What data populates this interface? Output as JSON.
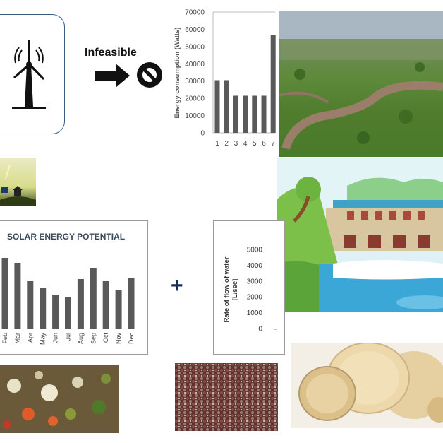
{
  "wind_panel": {
    "label": "Infeasible",
    "icons": [
      "wind-turbine-icon",
      "arrow-right-icon",
      "no-entry-icon"
    ]
  },
  "energy_chart": {
    "ylabel": "Energy consumption (Watts)",
    "yticks": [
      "0",
      "10000",
      "20000",
      "30000",
      "40000",
      "50000",
      "60000",
      "70000"
    ]
  },
  "solar_chart": {
    "title": "SOLAR ENERGY POTENTIAL"
  },
  "flow_chart": {
    "ylabel_line1": "Rate of flow of water",
    "ylabel_line2": "[L/sec]",
    "yticks": [
      "0",
      "1000",
      "2000",
      "3000",
      "4000",
      "5000"
    ]
  },
  "plus_symbol": "+",
  "chart_data": [
    {
      "type": "bar",
      "categories": [
        "1",
        "2",
        "3",
        "4",
        "5",
        "6",
        "7"
      ],
      "values": [
        30500,
        30500,
        21500,
        21500,
        21500,
        21500,
        56500
      ],
      "title": "",
      "xlabel": "",
      "ylabel": "Energy consumption (Watts)",
      "ylim": [
        0,
        70000
      ],
      "color": "#595959"
    },
    {
      "type": "bar",
      "categories": [
        "Feb",
        "Mar",
        "Apr",
        "May",
        "Jun",
        "Jul",
        "Aug",
        "Sep",
        "Oct",
        "Nov",
        "Dec"
      ],
      "values": [
        100,
        93,
        67,
        58,
        48,
        45,
        70,
        85,
        67,
        55,
        72
      ],
      "title": "SOLAR ENERGY POTENTIAL",
      "xlabel": "",
      "ylabel": "",
      "color": "#595959"
    },
    {
      "type": "bar",
      "categories": [],
      "values": [],
      "title": "",
      "xlabel": "",
      "ylabel": "Rate of flow of water [L/sec]",
      "ylim": [
        0,
        5000
      ]
    }
  ]
}
